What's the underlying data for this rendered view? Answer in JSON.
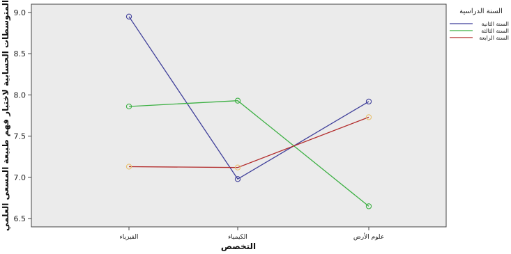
{
  "chart_data": {
    "type": "line",
    "categories": [
      "الفيزياء",
      "الكيمياء",
      "علوم الأرض"
    ],
    "xlabel": "التخصص",
    "ylabel": "المتوسطات الحسابية لاختبار فهم طبيعة المسعى العلمي",
    "ylim": [
      6.4,
      9.1
    ],
    "yticks": [
      "6.5",
      "7.0",
      "7.5",
      "8.0",
      "8.5",
      "9.0"
    ],
    "grid": false,
    "legend_title": "السنة الدراسية",
    "legend_position": "right",
    "series": [
      {
        "name": "السنة الثانية",
        "values": [
          8.95,
          6.98,
          7.92
        ],
        "color": "#3f3f9a"
      },
      {
        "name": "السنة الثالثة",
        "values": [
          7.86,
          7.93,
          6.65
        ],
        "color": "#3cb043"
      },
      {
        "name": "السنة الرابعة",
        "values": [
          7.13,
          7.12,
          7.73
        ],
        "color": "#b22a2a"
      }
    ],
    "marker_color": "#e8c070",
    "plot_background": "#ebebeb"
  }
}
